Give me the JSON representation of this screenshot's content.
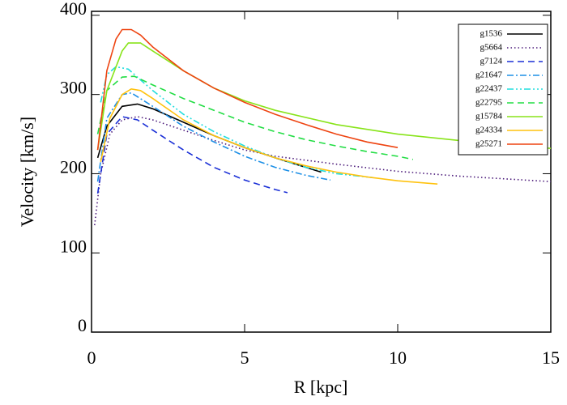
{
  "chart_data": {
    "type": "line",
    "x_label": "R [kpc]",
    "y_label": "Velocity [km/s]",
    "xlim": [
      0,
      15
    ],
    "ylim": [
      0,
      405
    ],
    "xticks": [
      0,
      5,
      10,
      15
    ],
    "yticks": [
      0,
      100,
      200,
      300,
      400
    ],
    "legend": "upper right",
    "series": [
      {
        "name": "g1536",
        "color": "#000000",
        "linestyle": "solid",
        "x": [
          0.2,
          0.5,
          1,
          1.5,
          2,
          3,
          4,
          5,
          6,
          7,
          7.5
        ],
        "values": [
          220,
          260,
          285,
          288,
          282,
          265,
          248,
          233,
          220,
          208,
          202
        ]
      },
      {
        "name": "g5664",
        "color": "#4b1a7a",
        "linestyle": "dotted",
        "x": [
          0.1,
          0.3,
          0.6,
          1,
          1.5,
          2,
          3,
          4,
          5,
          6,
          8,
          10,
          12,
          15
        ],
        "values": [
          135,
          200,
          250,
          268,
          272,
          268,
          255,
          242,
          230,
          222,
          212,
          203,
          197,
          190
        ]
      },
      {
        "name": "g7124",
        "color": "#1a2fd6",
        "linestyle": "dashed",
        "x": [
          0.2,
          0.5,
          1,
          1.5,
          2,
          3,
          4,
          5,
          6,
          6.4
        ],
        "values": [
          175,
          250,
          272,
          268,
          255,
          230,
          208,
          192,
          180,
          176
        ]
      },
      {
        "name": "g21647",
        "color": "#1e90e6",
        "linestyle": "dashdot",
        "x": [
          0.2,
          0.5,
          1,
          1.3,
          2,
          3,
          4,
          5,
          6,
          7,
          7.8
        ],
        "values": [
          190,
          270,
          300,
          302,
          285,
          260,
          240,
          222,
          208,
          198,
          192
        ]
      },
      {
        "name": "g22437",
        "color": "#22dddd",
        "linestyle": "dashdotdot",
        "x": [
          0.3,
          0.5,
          0.8,
          1.2,
          2,
          3,
          4,
          5,
          6,
          7,
          8,
          9.2
        ],
        "values": [
          290,
          325,
          335,
          332,
          305,
          275,
          253,
          235,
          220,
          208,
          200,
          195
        ]
      },
      {
        "name": "g22795",
        "color": "#22dd44",
        "linestyle": "dashed",
        "x": [
          0.2,
          0.5,
          1,
          1.4,
          2,
          3,
          4,
          5,
          6,
          7,
          8,
          9,
          10,
          10.5
        ],
        "values": [
          250,
          305,
          322,
          323,
          312,
          295,
          280,
          265,
          253,
          243,
          235,
          228,
          222,
          218
        ]
      },
      {
        "name": "g15784",
        "color": "#88e41a",
        "linestyle": "solid",
        "x": [
          0.2,
          0.5,
          1,
          1.2,
          1.6,
          2,
          3,
          4,
          5,
          6,
          8,
          10,
          12,
          15
        ],
        "values": [
          230,
          305,
          355,
          365,
          365,
          355,
          330,
          308,
          292,
          280,
          262,
          250,
          242,
          232
        ]
      },
      {
        "name": "g24334",
        "color": "#ffc20e",
        "linestyle": "solid",
        "x": [
          0.3,
          0.6,
          1,
          1.3,
          1.6,
          2,
          3,
          4,
          5,
          6,
          7,
          8,
          9,
          10,
          11.3
        ],
        "values": [
          215,
          270,
          300,
          307,
          305,
          295,
          268,
          248,
          233,
          220,
          210,
          202,
          196,
          191,
          187
        ]
      },
      {
        "name": "g25271",
        "color": "#ee4411",
        "linestyle": "solid",
        "x": [
          0.2,
          0.5,
          0.8,
          1,
          1.3,
          1.6,
          2,
          3,
          4,
          5,
          6,
          7,
          8,
          9,
          10
        ],
        "values": [
          230,
          330,
          370,
          382,
          382,
          375,
          360,
          330,
          308,
          290,
          275,
          262,
          250,
          240,
          233
        ]
      }
    ]
  }
}
